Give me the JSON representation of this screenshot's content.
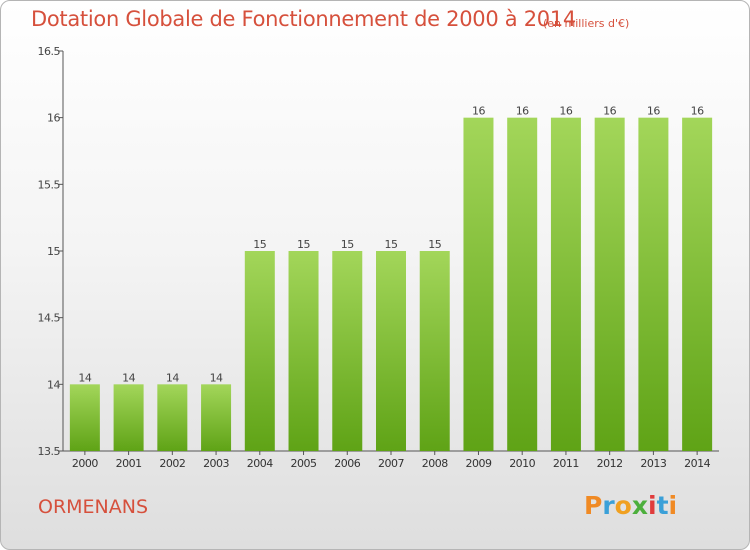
{
  "title": "Dotation Globale de Fonctionnement de 2000 à 2014",
  "unit_label": "(en milliers d'€)",
  "commune": "ORMENANS",
  "logo": {
    "text": "Proxiti",
    "letter_colors": [
      "#f08a24",
      "#3aa0d8",
      "#f0a020",
      "#4caf3c",
      "#e03c3c",
      "#3aa0d8",
      "#f08a24"
    ]
  },
  "colors": {
    "bar_top": "#a3d65a",
    "bar_bottom": "#5fa316",
    "text": "#d6503c",
    "axis": "#555555"
  },
  "chart_data": {
    "type": "bar",
    "categories": [
      "2000",
      "2001",
      "2002",
      "2003",
      "2004",
      "2005",
      "2006",
      "2007",
      "2008",
      "2009",
      "2010",
      "2011",
      "2012",
      "2013",
      "2014"
    ],
    "values": [
      14,
      14,
      14,
      14,
      15,
      15,
      15,
      15,
      15,
      16,
      16,
      16,
      16,
      16,
      16
    ],
    "data_labels": [
      "14",
      "14",
      "14",
      "14",
      "15",
      "15",
      "15",
      "15",
      "15",
      "16",
      "16",
      "16",
      "16",
      "16",
      "16"
    ],
    "ylim": [
      13.5,
      16.5
    ],
    "yticks": [
      13.5,
      14,
      14.5,
      15,
      15.5,
      16,
      16.5
    ],
    "ytick_labels": [
      "13.5",
      "14",
      "14.5",
      "15",
      "15.5",
      "16",
      "16.5"
    ],
    "grid": false,
    "legend": "none"
  }
}
